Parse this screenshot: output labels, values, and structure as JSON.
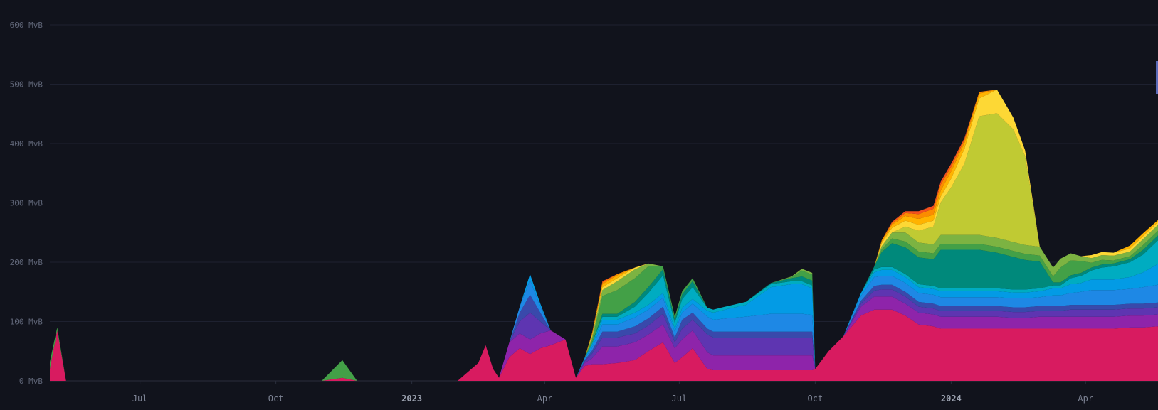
{
  "colors": {
    "background": "#11131c",
    "grid": "#1e2130",
    "tick_text": "#5f6577",
    "layers": [
      "#d81b60",
      "#8e24aa",
      "#5e35b1",
      "#3949ab",
      "#1e88e5",
      "#039be5",
      "#00acc1",
      "#00897b",
      "#43a047",
      "#7cb342",
      "#c0ca33",
      "#fdd835",
      "#ffb300",
      "#fb8c00",
      "#f4511e"
    ]
  },
  "chart_data": {
    "type": "area",
    "stacked": true,
    "yunit": "MvB",
    "ylim": [
      0,
      600
    ],
    "yticks": [
      0,
      100,
      200,
      300,
      400,
      500,
      600
    ],
    "ytick_labels": [
      "0 MvB",
      "100 MvB",
      "200 MvB",
      "300 MvB",
      "400 MvB",
      "500 MvB",
      "600 MvB"
    ],
    "xlim": [
      "2022-05-01",
      "2024-05-20"
    ],
    "xticks": [
      {
        "date": "2022-07-01",
        "label": "Jul",
        "year": false
      },
      {
        "date": "2022-10-01",
        "label": "Oct",
        "year": false
      },
      {
        "date": "2023-01-01",
        "label": "2023",
        "year": true
      },
      {
        "date": "2023-04-01",
        "label": "Apr",
        "year": false
      },
      {
        "date": "2023-07-01",
        "label": "Jul",
        "year": false
      },
      {
        "date": "2023-10-01",
        "label": "Oct",
        "year": false
      },
      {
        "date": "2024-01-01",
        "label": "2024",
        "year": true
      },
      {
        "date": "2024-04-01",
        "label": "Apr",
        "year": false
      }
    ],
    "grid": true,
    "dates": [
      "2022-05-01",
      "2022-05-06",
      "2022-05-12",
      "2022-06-01",
      "2022-07-01",
      "2022-08-01",
      "2022-09-01",
      "2022-10-01",
      "2022-11-01",
      "2022-11-15",
      "2022-11-25",
      "2022-12-01",
      "2022-12-15",
      "2023-01-01",
      "2023-01-15",
      "2023-02-01",
      "2023-02-15",
      "2023-02-20",
      "2023-02-25",
      "2023-03-01",
      "2023-03-08",
      "2023-03-15",
      "2023-03-22",
      "2023-03-29",
      "2023-04-05",
      "2023-04-15",
      "2023-04-22",
      "2023-04-28",
      "2023-05-03",
      "2023-05-10",
      "2023-05-20",
      "2023-06-01",
      "2023-06-10",
      "2023-06-20",
      "2023-06-28",
      "2023-07-03",
      "2023-07-10",
      "2023-07-20",
      "2023-07-24",
      "2023-08-01",
      "2023-08-15",
      "2023-09-01",
      "2023-09-15",
      "2023-09-22",
      "2023-09-29",
      "2023-10-01",
      "2023-10-10",
      "2023-10-20",
      "2023-11-01",
      "2023-11-10",
      "2023-11-15",
      "2023-11-22",
      "2023-12-01",
      "2023-12-10",
      "2023-12-20",
      "2023-12-25",
      "2024-01-01",
      "2024-01-10",
      "2024-01-20",
      "2024-02-01",
      "2024-02-12",
      "2024-02-20",
      "2024-03-01",
      "2024-03-10",
      "2024-03-15",
      "2024-03-22",
      "2024-03-29",
      "2024-04-05",
      "2024-04-12",
      "2024-04-20",
      "2024-05-01",
      "2024-05-10",
      "2024-05-20"
    ],
    "series": [
      {
        "values": [
          20,
          85,
          0,
          0,
          0,
          0,
          0,
          0,
          0,
          5,
          0,
          0,
          0,
          0,
          0,
          0,
          30,
          60,
          20,
          5,
          40,
          55,
          45,
          55,
          60,
          70,
          5,
          25,
          28,
          28,
          30,
          35,
          50,
          65,
          30,
          40,
          55,
          20,
          18,
          18,
          18,
          18,
          18,
          18,
          18,
          20,
          50,
          75,
          110,
          120,
          120,
          120,
          110,
          95,
          92,
          88,
          88,
          88,
          88,
          88,
          88,
          88,
          88,
          88,
          88,
          88,
          88,
          88,
          88,
          88,
          90,
          90,
          92
        ]
      },
      {
        "values": [
          0,
          0,
          0,
          0,
          0,
          0,
          0,
          0,
          0,
          0,
          0,
          0,
          0,
          0,
          0,
          0,
          0,
          0,
          0,
          0,
          25,
          25,
          25,
          25,
          25,
          0,
          0,
          5,
          10,
          30,
          28,
          30,
          28,
          30,
          25,
          30,
          30,
          28,
          25,
          25,
          25,
          25,
          25,
          25,
          25,
          0,
          0,
          0,
          15,
          22,
          22,
          22,
          20,
          20,
          20,
          20,
          20,
          20,
          20,
          20,
          18,
          18,
          20,
          20,
          20,
          20,
          20,
          20,
          20,
          20,
          20,
          20,
          20
        ]
      },
      {
        "values": [
          0,
          0,
          0,
          0,
          0,
          0,
          0,
          0,
          0,
          0,
          0,
          0,
          0,
          0,
          0,
          0,
          0,
          0,
          0,
          0,
          0,
          20,
          45,
          20,
          0,
          0,
          0,
          3,
          8,
          15,
          15,
          15,
          15,
          18,
          10,
          18,
          18,
          30,
          30,
          30,
          30,
          30,
          30,
          30,
          30,
          0,
          0,
          0,
          5,
          10,
          12,
          12,
          12,
          10,
          10,
          10,
          10,
          10,
          10,
          10,
          10,
          10,
          10,
          10,
          10,
          12,
          12,
          12,
          12,
          12,
          12,
          12,
          12
        ]
      },
      {
        "values": [
          0,
          0,
          0,
          0,
          0,
          0,
          0,
          0,
          0,
          0,
          0,
          0,
          0,
          0,
          0,
          0,
          0,
          0,
          0,
          0,
          0,
          15,
          30,
          15,
          0,
          0,
          0,
          2,
          5,
          10,
          10,
          12,
          12,
          12,
          8,
          15,
          12,
          10,
          10,
          10,
          10,
          10,
          10,
          10,
          10,
          0,
          0,
          0,
          5,
          8,
          8,
          8,
          8,
          8,
          8,
          8,
          8,
          8,
          8,
          8,
          8,
          8,
          8,
          8,
          8,
          8,
          8,
          8,
          8,
          8,
          8,
          8,
          8
        ]
      },
      {
        "values": [
          0,
          0,
          0,
          0,
          0,
          0,
          0,
          0,
          0,
          0,
          0,
          0,
          0,
          0,
          0,
          0,
          0,
          0,
          0,
          0,
          0,
          10,
          25,
          10,
          0,
          0,
          0,
          2,
          5,
          12,
          12,
          15,
          15,
          15,
          10,
          12,
          15,
          20,
          20,
          22,
          25,
          30,
          30,
          30,
          28,
          0,
          0,
          0,
          8,
          15,
          15,
          15,
          15,
          15,
          15,
          15,
          15,
          15,
          15,
          15,
          15,
          15,
          15,
          18,
          18,
          20,
          22,
          25,
          25,
          25,
          25,
          28,
          30
        ]
      },
      {
        "values": [
          0,
          0,
          0,
          0,
          0,
          0,
          0,
          0,
          0,
          0,
          0,
          0,
          0,
          0,
          0,
          0,
          0,
          0,
          0,
          0,
          0,
          0,
          10,
          5,
          0,
          0,
          0,
          2,
          5,
          8,
          8,
          8,
          8,
          8,
          5,
          8,
          8,
          10,
          12,
          15,
          20,
          45,
          50,
          50,
          45,
          0,
          0,
          0,
          5,
          8,
          10,
          10,
          10,
          10,
          10,
          10,
          10,
          10,
          10,
          10,
          10,
          10,
          10,
          12,
          12,
          15,
          15,
          18,
          18,
          18,
          20,
          25,
          35
        ]
      },
      {
        "values": [
          0,
          0,
          0,
          0,
          0,
          0,
          0,
          0,
          0,
          0,
          0,
          0,
          0,
          0,
          0,
          0,
          0,
          0,
          0,
          0,
          0,
          0,
          0,
          0,
          0,
          0,
          0,
          0,
          3,
          5,
          5,
          10,
          20,
          30,
          10,
          15,
          20,
          5,
          5,
          5,
          5,
          5,
          5,
          5,
          5,
          0,
          0,
          0,
          0,
          5,
          5,
          5,
          5,
          5,
          5,
          5,
          5,
          5,
          5,
          5,
          5,
          5,
          5,
          5,
          5,
          10,
          12,
          15,
          20,
          22,
          25,
          30,
          40
        ]
      },
      {
        "values": [
          0,
          0,
          0,
          0,
          0,
          0,
          0,
          0,
          0,
          0,
          0,
          0,
          0,
          0,
          0,
          0,
          0,
          0,
          0,
          0,
          0,
          0,
          0,
          0,
          0,
          0,
          0,
          0,
          0,
          5,
          5,
          8,
          10,
          10,
          5,
          8,
          10,
          0,
          0,
          0,
          0,
          2,
          5,
          8,
          8,
          0,
          0,
          0,
          0,
          5,
          25,
          40,
          45,
          45,
          45,
          65,
          65,
          65,
          65,
          60,
          55,
          50,
          45,
          5,
          5,
          5,
          5,
          5,
          5,
          5,
          5,
          8,
          8
        ]
      },
      {
        "values": [
          12,
          5,
          0,
          0,
          0,
          0,
          0,
          0,
          0,
          30,
          0,
          0,
          0,
          0,
          0,
          0,
          0,
          0,
          0,
          0,
          0,
          0,
          0,
          0,
          0,
          0,
          0,
          0,
          5,
          30,
          40,
          40,
          35,
          5,
          5,
          5,
          5,
          0,
          0,
          0,
          0,
          0,
          2,
          10,
          10,
          0,
          0,
          0,
          0,
          0,
          5,
          8,
          10,
          10,
          10,
          10,
          10,
          10,
          10,
          10,
          10,
          10,
          10,
          10,
          25,
          25,
          20,
          8,
          8,
          5,
          5,
          8,
          8
        ]
      },
      {
        "values": [
          0,
          0,
          0,
          0,
          0,
          0,
          0,
          0,
          0,
          0,
          0,
          0,
          0,
          0,
          0,
          0,
          0,
          0,
          0,
          0,
          0,
          0,
          0,
          0,
          0,
          0,
          0,
          0,
          5,
          10,
          15,
          15,
          5,
          0,
          0,
          0,
          0,
          0,
          0,
          0,
          0,
          0,
          1,
          3,
          3,
          0,
          0,
          0,
          0,
          0,
          5,
          10,
          15,
          15,
          15,
          15,
          15,
          15,
          15,
          15,
          15,
          15,
          15,
          15,
          15,
          12,
          8,
          8,
          8,
          8,
          8,
          10,
          10
        ]
      },
      {
        "values": [
          0,
          0,
          0,
          0,
          0,
          0,
          0,
          0,
          0,
          0,
          0,
          0,
          0,
          0,
          0,
          0,
          0,
          0,
          0,
          0,
          0,
          0,
          0,
          0,
          0,
          0,
          0,
          0,
          0,
          0,
          0,
          0,
          0,
          0,
          0,
          0,
          0,
          0,
          0,
          0,
          0,
          0,
          0,
          0,
          0,
          0,
          0,
          0,
          0,
          0,
          0,
          0,
          10,
          20,
          30,
          55,
          80,
          120,
          200,
          210,
          190,
          150,
          0,
          0,
          0,
          0,
          0,
          0,
          0,
          0,
          0,
          0,
          0
        ]
      },
      {
        "values": [
          0,
          0,
          0,
          0,
          0,
          0,
          0,
          0,
          0,
          0,
          0,
          0,
          0,
          0,
          0,
          0,
          0,
          0,
          0,
          0,
          0,
          0,
          0,
          0,
          0,
          0,
          0,
          0,
          3,
          5,
          5,
          3,
          0,
          0,
          0,
          0,
          0,
          0,
          0,
          0,
          0,
          0,
          0,
          0,
          0,
          0,
          0,
          0,
          0,
          0,
          5,
          8,
          10,
          10,
          10,
          10,
          15,
          25,
          30,
          40,
          20,
          10,
          0,
          0,
          0,
          0,
          0,
          5,
          5,
          5,
          5,
          5,
          5
        ]
      },
      {
        "values": [
          0,
          0,
          0,
          0,
          0,
          0,
          0,
          0,
          0,
          0,
          0,
          0,
          0,
          0,
          0,
          0,
          0,
          0,
          0,
          0,
          0,
          0,
          0,
          0,
          0,
          0,
          0,
          0,
          2,
          5,
          5,
          0,
          0,
          0,
          0,
          0,
          0,
          0,
          0,
          0,
          0,
          0,
          0,
          0,
          0,
          0,
          0,
          0,
          0,
          0,
          3,
          5,
          8,
          10,
          10,
          10,
          12,
          10,
          8,
          0,
          0,
          0,
          0,
          0,
          0,
          0,
          0,
          0,
          0,
          0,
          5,
          5,
          3
        ]
      },
      {
        "values": [
          0,
          0,
          0,
          0,
          0,
          0,
          0,
          0,
          0,
          0,
          0,
          0,
          0,
          0,
          0,
          0,
          0,
          0,
          0,
          0,
          0,
          0,
          0,
          0,
          0,
          0,
          0,
          0,
          2,
          3,
          2,
          0,
          0,
          0,
          0,
          0,
          0,
          0,
          0,
          0,
          0,
          0,
          0,
          0,
          0,
          0,
          0,
          0,
          0,
          0,
          2,
          3,
          5,
          8,
          10,
          10,
          8,
          5,
          3,
          0,
          0,
          0,
          0,
          0,
          0,
          0,
          0,
          0,
          0,
          0,
          0,
          0,
          0
        ]
      },
      {
        "values": [
          0,
          0,
          0,
          0,
          0,
          0,
          0,
          0,
          0,
          0,
          0,
          0,
          0,
          0,
          0,
          0,
          0,
          0,
          0,
          0,
          0,
          0,
          0,
          0,
          0,
          0,
          0,
          0,
          0,
          2,
          0,
          0,
          0,
          0,
          0,
          0,
          0,
          0,
          0,
          0,
          0,
          0,
          0,
          0,
          0,
          0,
          0,
          0,
          0,
          0,
          0,
          2,
          3,
          5,
          5,
          5,
          5,
          3,
          0,
          0,
          0,
          0,
          0,
          0,
          0,
          0,
          0,
          0,
          0,
          0,
          0,
          0,
          0
        ]
      }
    ]
  }
}
